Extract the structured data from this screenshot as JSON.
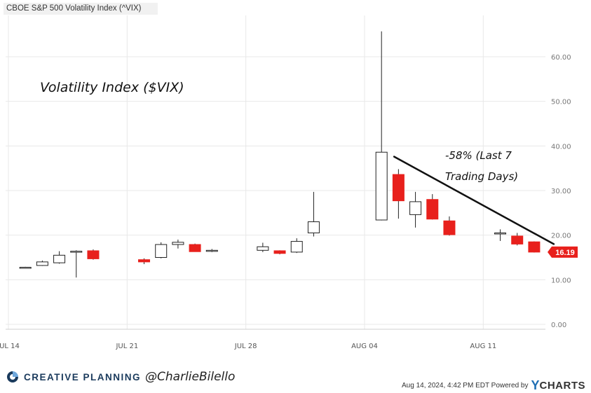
{
  "header": {
    "title": "CBOE S&P 500 Volatility Index (^VIX)"
  },
  "annotations": {
    "main_label": "Volatility Index ($VIX)",
    "decline_line1": "-58% (Last 7",
    "decline_line2": "Trading Days)"
  },
  "last_value_badge": "16.19",
  "footer": {
    "brand": "CREATIVE PLANNING",
    "handle": "@CharlieBilello",
    "timestamp": "Aug 14, 2024, 4:42 PM EDT Powered by",
    "powered_y": "Y",
    "powered_rest": "CHARTS"
  },
  "colors": {
    "down": "#e8201c",
    "up_fill": "#ffffff",
    "candle_outline": "#222222",
    "badge": "#e8201c",
    "grid": "#e8e8e8",
    "brand": "#1a3a5c",
    "ycharts_blue": "#1f6fb4"
  },
  "chart_data": {
    "type": "candlestick",
    "title": "CBOE S&P 500 Volatility Index (^VIX)",
    "ylim": [
      0,
      65
    ],
    "yticks": [
      "0.00",
      "10.00",
      "20.00",
      "30.00",
      "40.00",
      "50.00",
      "60.00"
    ],
    "xticks": [
      "JUL 14",
      "JUL 21",
      "JUL 28",
      "AUG 04",
      "AUG 11"
    ],
    "candles": [
      {
        "date": "2024-07-12",
        "open": 12.3,
        "high": 12.6,
        "low": 12.1,
        "close": 12.5
      },
      {
        "date": "2024-07-15",
        "open": 12.6,
        "high": 12.9,
        "low": 12.5,
        "close": 12.8
      },
      {
        "date": "2024-07-16",
        "open": 13.2,
        "high": 14.3,
        "low": 13.1,
        "close": 14.0
      },
      {
        "date": "2024-07-17",
        "open": 13.8,
        "high": 16.4,
        "low": 13.6,
        "close": 15.5
      },
      {
        "date": "2024-07-18",
        "open": 16.2,
        "high": 16.6,
        "low": 10.5,
        "close": 16.4
      },
      {
        "date": "2024-07-19",
        "open": 16.5,
        "high": 16.8,
        "low": 14.5,
        "close": 14.7
      },
      {
        "date": "2024-07-22",
        "open": 14.5,
        "high": 14.8,
        "low": 13.5,
        "close": 14.0
      },
      {
        "date": "2024-07-23",
        "open": 15.0,
        "high": 18.4,
        "low": 14.8,
        "close": 17.9
      },
      {
        "date": "2024-07-24",
        "open": 17.9,
        "high": 19.0,
        "low": 17.0,
        "close": 18.4
      },
      {
        "date": "2024-07-25",
        "open": 17.9,
        "high": 18.1,
        "low": 16.3,
        "close": 16.3
      },
      {
        "date": "2024-07-26",
        "open": 16.6,
        "high": 16.9,
        "low": 16.2,
        "close": 16.6
      },
      {
        "date": "2024-07-29",
        "open": 16.6,
        "high": 18.3,
        "low": 16.2,
        "close": 17.4
      },
      {
        "date": "2024-07-30",
        "open": 16.5,
        "high": 16.6,
        "low": 15.7,
        "close": 15.9
      },
      {
        "date": "2024-07-31",
        "open": 16.2,
        "high": 19.3,
        "low": 16.0,
        "close": 18.6
      },
      {
        "date": "2024-08-01",
        "open": 20.5,
        "high": 29.7,
        "low": 19.7,
        "close": 23.0
      },
      {
        "date": "2024-08-05",
        "open": 23.4,
        "high": 65.7,
        "low": 23.3,
        "close": 38.6
      },
      {
        "date": "2024-08-06",
        "open": 33.6,
        "high": 34.8,
        "low": 23.7,
        "close": 27.7
      },
      {
        "date": "2024-08-07",
        "open": 24.6,
        "high": 29.7,
        "low": 21.7,
        "close": 27.5
      },
      {
        "date": "2024-08-08",
        "open": 28.0,
        "high": 29.2,
        "low": 23.5,
        "close": 23.6
      },
      {
        "date": "2024-08-09",
        "open": 23.2,
        "high": 24.2,
        "low": 19.9,
        "close": 20.1
      },
      {
        "date": "2024-08-12",
        "open": 20.4,
        "high": 21.3,
        "low": 18.7,
        "close": 20.5
      },
      {
        "date": "2024-08-13",
        "open": 19.8,
        "high": 20.5,
        "low": 17.7,
        "close": 18.0
      },
      {
        "date": "2024-08-14",
        "open": 18.5,
        "high": 18.6,
        "low": 16.1,
        "close": 16.2
      }
    ],
    "trendline": {
      "from": {
        "date": "2024-08-05",
        "value": 37.6
      },
      "to": {
        "date": "2024-08-14",
        "value": 18.0
      }
    },
    "last_value": 16.19,
    "grid": true
  }
}
